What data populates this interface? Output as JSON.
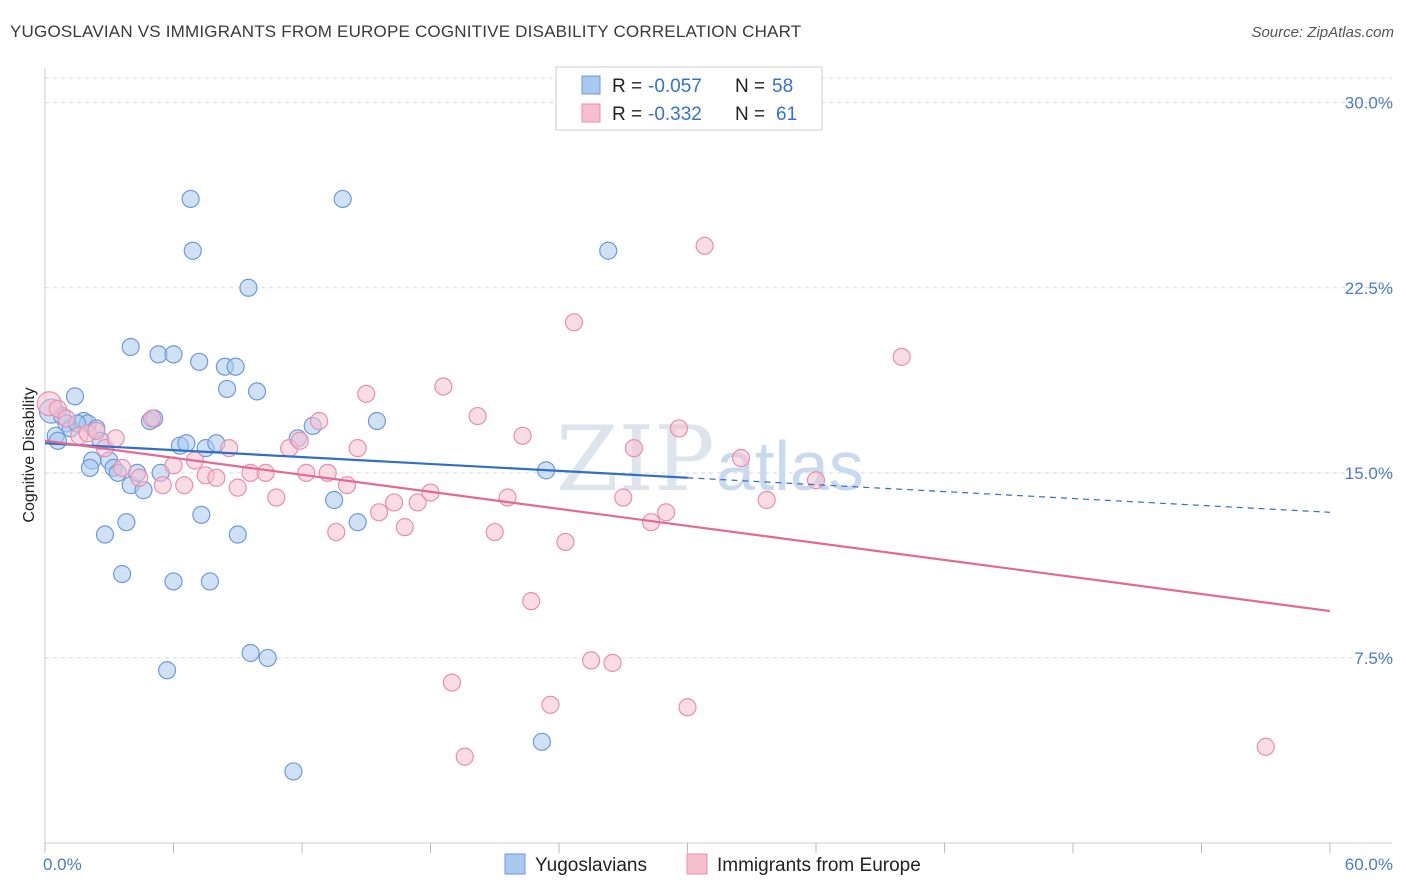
{
  "title": "YUGOSLAVIAN VS IMMIGRANTS FROM EUROPE COGNITIVE DISABILITY CORRELATION CHART",
  "source": "Source: ZipAtlas.com",
  "watermark": {
    "zip": "ZIP",
    "atlas": "atlas"
  },
  "colors": {
    "blue_fill": "#a9c8ef",
    "blue_stroke": "#6d9bd9",
    "blue_line": "#2f6fc7",
    "pink_fill": "#f5bfd0",
    "pink_stroke": "#e98fae",
    "pink_line": "#e06a96",
    "grid": "#d9d9d9",
    "axis_text": "#4a7cc7"
  },
  "stats": [
    {
      "r_label": "R =",
      "r_value": "-0.057",
      "n_label": "N =",
      "n_value": "58"
    },
    {
      "r_label": "R =",
      "r_value": "-0.332",
      "n_label": "N =",
      "n_value": "61"
    }
  ],
  "legend": [
    "Yugoslavians",
    "Immigrants from Europe"
  ],
  "chart_data": {
    "type": "scatter",
    "xlabel": "",
    "ylabel": "Cognitive Disability",
    "xlim": [
      0,
      60
    ],
    "ylim": [
      0,
      31
    ],
    "x_ticks": [
      "0.0%",
      "60.0%"
    ],
    "y_ticks": [
      {
        "value": 7.5,
        "label": "7.5%"
      },
      {
        "value": 15.0,
        "label": "15.0%"
      },
      {
        "value": 22.5,
        "label": "22.5%"
      },
      {
        "value": 30.0,
        "label": "30.0%"
      }
    ],
    "grid": "horizontal dashed",
    "series": [
      {
        "name": "Yugoslavians",
        "trend": {
          "x": [
            0,
            30
          ],
          "y": [
            16.2,
            14.8
          ],
          "dashed_to": [
            60,
            13.4
          ]
        },
        "points": [
          [
            0.3,
            17.5
          ],
          [
            0.5,
            16.5
          ],
          [
            0.8,
            17.3
          ],
          [
            1.0,
            17.0
          ],
          [
            1.2,
            16.8
          ],
          [
            1.4,
            18.1
          ],
          [
            1.8,
            17.1
          ],
          [
            2.0,
            17.0
          ],
          [
            2.2,
            15.5
          ],
          [
            2.4,
            16.8
          ],
          [
            2.6,
            16.3
          ],
          [
            3.0,
            15.5
          ],
          [
            3.2,
            15.2
          ],
          [
            3.4,
            15.0
          ],
          [
            3.6,
            10.9
          ],
          [
            3.8,
            13.0
          ],
          [
            4.0,
            14.5
          ],
          [
            4.3,
            15.0
          ],
          [
            4.6,
            14.3
          ],
          [
            4.9,
            17.1
          ],
          [
            5.1,
            17.2
          ],
          [
            5.4,
            15.0
          ],
          [
            5.7,
            7.0
          ],
          [
            6.0,
            10.6
          ],
          [
            6.3,
            16.1
          ],
          [
            6.6,
            16.2
          ],
          [
            6.8,
            26.1
          ],
          [
            6.9,
            24.0
          ],
          [
            7.2,
            19.5
          ],
          [
            7.3,
            13.3
          ],
          [
            7.5,
            16.0
          ],
          [
            7.7,
            10.6
          ],
          [
            8.0,
            16.2
          ],
          [
            8.4,
            19.3
          ],
          [
            8.5,
            18.4
          ],
          [
            8.9,
            19.3
          ],
          [
            9.0,
            12.5
          ],
          [
            9.5,
            22.5
          ],
          [
            9.6,
            7.7
          ],
          [
            9.9,
            18.3
          ],
          [
            10.4,
            7.5
          ],
          [
            11.6,
            2.9
          ],
          [
            11.8,
            16.4
          ],
          [
            12.5,
            16.9
          ],
          [
            13.5,
            13.9
          ],
          [
            13.9,
            26.1
          ],
          [
            14.6,
            13.0
          ],
          [
            15.5,
            17.1
          ],
          [
            2.8,
            12.5
          ],
          [
            4.0,
            20.1
          ],
          [
            5.3,
            19.8
          ],
          [
            6.0,
            19.8
          ],
          [
            23.2,
            4.1
          ],
          [
            23.4,
            15.1
          ],
          [
            26.3,
            24.0
          ],
          [
            2.1,
            15.2
          ],
          [
            0.6,
            16.3
          ],
          [
            1.5,
            17.0
          ]
        ]
      },
      {
        "name": "Immigrants from Europe",
        "trend": {
          "x": [
            0,
            60
          ],
          "y": [
            16.3,
            9.4
          ]
        },
        "points": [
          [
            0.2,
            17.8
          ],
          [
            0.6,
            17.6
          ],
          [
            1.0,
            17.2
          ],
          [
            1.6,
            16.5
          ],
          [
            2.0,
            16.6
          ],
          [
            2.4,
            16.7
          ],
          [
            2.8,
            16.0
          ],
          [
            3.3,
            16.4
          ],
          [
            3.6,
            15.2
          ],
          [
            4.4,
            14.8
          ],
          [
            5.0,
            17.2
          ],
          [
            5.5,
            14.5
          ],
          [
            6.0,
            15.3
          ],
          [
            6.5,
            14.5
          ],
          [
            7.0,
            15.5
          ],
          [
            7.5,
            14.9
          ],
          [
            8.0,
            14.8
          ],
          [
            8.6,
            16.0
          ],
          [
            9.0,
            14.4
          ],
          [
            9.6,
            15.0
          ],
          [
            10.3,
            15.0
          ],
          [
            10.8,
            14.0
          ],
          [
            11.4,
            16.0
          ],
          [
            11.9,
            16.3
          ],
          [
            12.2,
            15.0
          ],
          [
            12.8,
            17.1
          ],
          [
            13.2,
            15.0
          ],
          [
            13.6,
            12.6
          ],
          [
            14.1,
            14.5
          ],
          [
            14.6,
            16.0
          ],
          [
            15.0,
            18.2
          ],
          [
            15.6,
            13.4
          ],
          [
            16.3,
            13.8
          ],
          [
            16.8,
            12.8
          ],
          [
            17.4,
            13.8
          ],
          [
            18.0,
            14.2
          ],
          [
            18.6,
            18.5
          ],
          [
            19.0,
            6.5
          ],
          [
            19.6,
            3.5
          ],
          [
            20.2,
            17.3
          ],
          [
            21.0,
            12.6
          ],
          [
            21.6,
            14.0
          ],
          [
            22.3,
            16.5
          ],
          [
            22.7,
            9.8
          ],
          [
            23.6,
            5.6
          ],
          [
            24.3,
            12.2
          ],
          [
            24.7,
            21.1
          ],
          [
            25.5,
            7.4
          ],
          [
            26.5,
            7.3
          ],
          [
            27.0,
            14.0
          ],
          [
            27.5,
            16.0
          ],
          [
            28.3,
            13.0
          ],
          [
            29.0,
            13.4
          ],
          [
            29.6,
            16.8
          ],
          [
            30.0,
            5.5
          ],
          [
            30.8,
            24.2
          ],
          [
            32.5,
            15.6
          ],
          [
            33.7,
            13.9
          ],
          [
            36.0,
            14.7
          ],
          [
            40.0,
            19.7
          ],
          [
            57.0,
            3.9
          ]
        ]
      }
    ]
  }
}
